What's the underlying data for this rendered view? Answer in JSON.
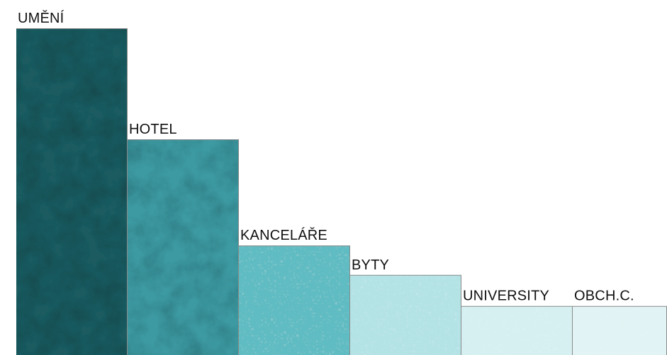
{
  "chart_data": {
    "type": "bar",
    "categories": [
      "UMĚNÍ",
      "HOTEL",
      "KANCELÁŘE",
      "BYTY",
      "UNIVERSITY",
      "OBCH.C."
    ],
    "values": [
      100,
      66,
      33.5,
      24.5,
      15,
      15
    ],
    "title": "",
    "xlabel": "",
    "ylabel": "",
    "ylim": [
      0,
      100
    ],
    "grid": false,
    "legend": "none"
  },
  "colors": {
    "bars": [
      "#1d5b61",
      "#3e9aa2",
      "#5fbcc2",
      "#b4e3e6",
      "#d6f0f1",
      "#e1f3f4"
    ],
    "label_text": "#111111",
    "edge": "#8a8a8a"
  }
}
